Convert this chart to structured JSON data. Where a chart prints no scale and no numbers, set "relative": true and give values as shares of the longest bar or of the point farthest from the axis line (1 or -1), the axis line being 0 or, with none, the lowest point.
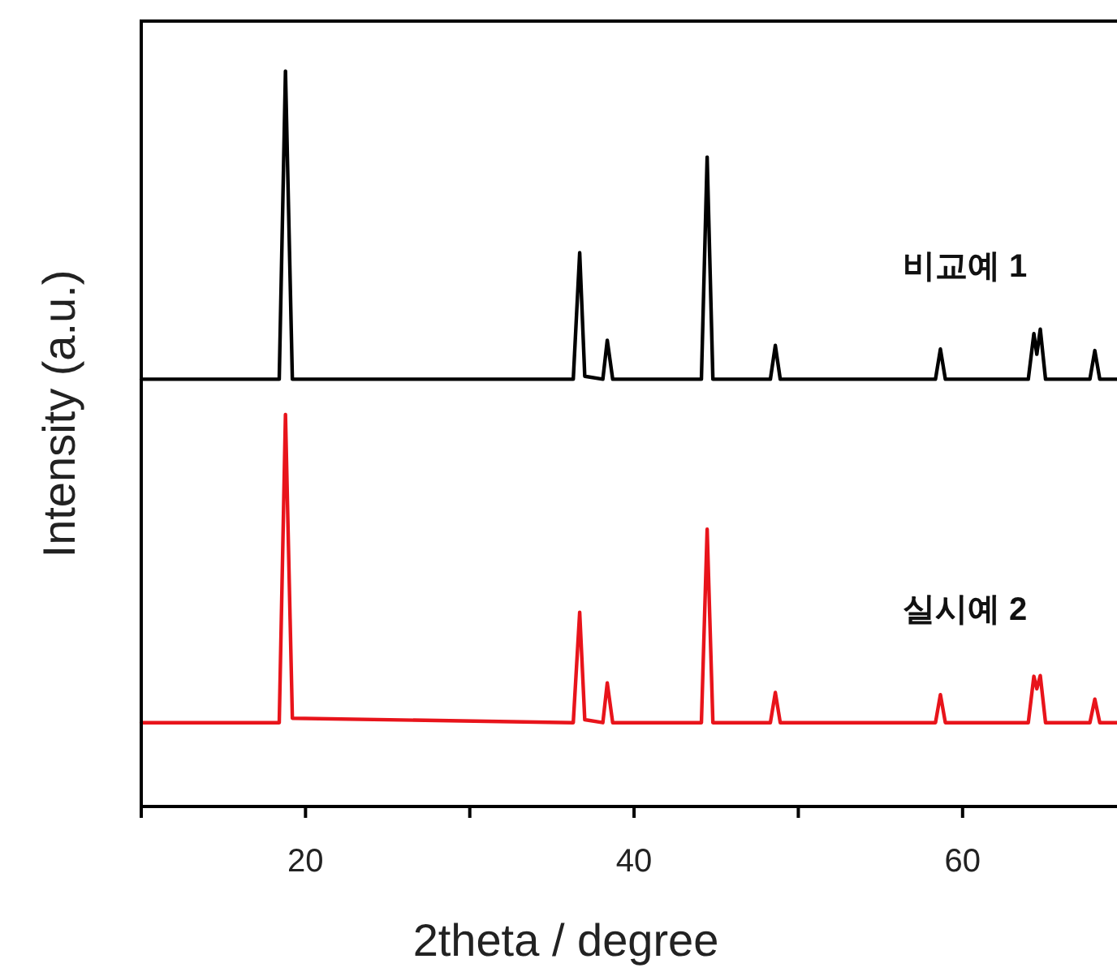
{
  "chart_data": {
    "type": "line",
    "relative": true,
    "xlabel": "2theta / degree",
    "ylabel": "Intensity (a.u.)",
    "xlim": [
      10,
      69.4
    ],
    "xticks": [
      {
        "value": 10,
        "label": null
      },
      20,
      {
        "value": 30,
        "label": null
      },
      40,
      {
        "value": 50,
        "label": null
      },
      60
    ],
    "legend": false,
    "marker": "none",
    "line_style": "solid",
    "tick_labels": "x",
    "series": [
      {
        "name": "비교예 1",
        "color": "#000000",
        "x": [
          10,
          18.4,
          18.78,
          19.2,
          36.3,
          36.69,
          37.0,
          38.1,
          38.37,
          38.7,
          44.1,
          44.45,
          44.8,
          48.3,
          48.6,
          48.9,
          58.35,
          58.65,
          58.95,
          64.0,
          64.34,
          64.52,
          64.73,
          65.05,
          67.75,
          68.05,
          68.35,
          69.4
        ],
        "values": [
          0.581,
          0.581,
          1.0,
          0.581,
          0.581,
          0.753,
          0.585,
          0.581,
          0.634,
          0.581,
          0.581,
          0.883,
          0.581,
          0.581,
          0.627,
          0.581,
          0.581,
          0.622,
          0.581,
          0.581,
          0.643,
          0.615,
          0.649,
          0.581,
          0.581,
          0.62,
          0.581,
          0.581
        ]
      },
      {
        "name": "실시예 2",
        "color": "#e8141b",
        "x": [
          10,
          18.4,
          18.78,
          19.2,
          36.3,
          36.69,
          37.0,
          38.1,
          38.37,
          38.7,
          44.1,
          44.45,
          44.8,
          48.3,
          48.6,
          48.9,
          58.35,
          58.65,
          58.95,
          64.0,
          64.34,
          64.52,
          64.73,
          65.05,
          67.75,
          68.05,
          68.35,
          69.4
        ],
        "values": [
          0.114,
          0.114,
          0.533,
          0.12,
          0.114,
          0.264,
          0.118,
          0.114,
          0.168,
          0.114,
          0.114,
          0.377,
          0.114,
          0.114,
          0.155,
          0.114,
          0.114,
          0.152,
          0.114,
          0.114,
          0.177,
          0.16,
          0.178,
          0.114,
          0.114,
          0.146,
          0.114,
          0.114
        ]
      }
    ]
  }
}
